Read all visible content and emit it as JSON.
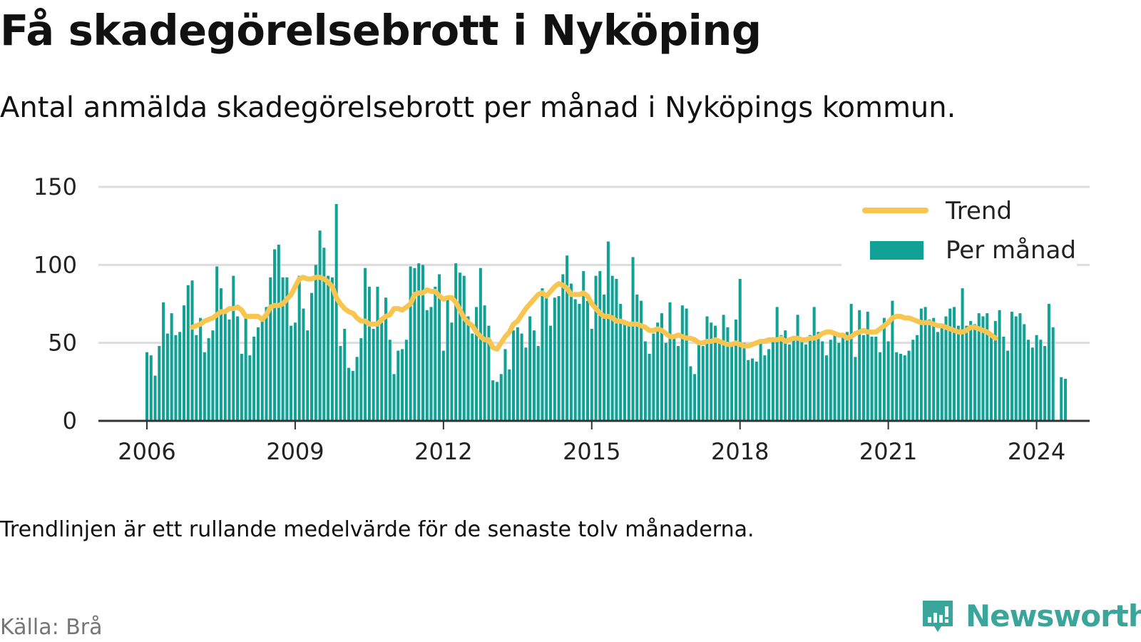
{
  "title": "Få skadegörelsebrott i Nyköping",
  "subtitle": "Antal anmälda skadegörelsebrott per månad i Nyköpings kommun.",
  "note": "Trendlinjen är ett rullande medelvärde för de senaste tolv månaderna.",
  "source": "Källa: Brå",
  "brand": "Newsworthy",
  "colors": {
    "bars": "#12a195",
    "trend": "#f7c550",
    "grid": "#dddddd",
    "axis": "#333333",
    "brand": "#3aa59a"
  },
  "chart_data": {
    "type": "bar",
    "x_start": "2006-01",
    "x_ticks": [
      "2006",
      "2009",
      "2012",
      "2015",
      "2018",
      "2021",
      "2024"
    ],
    "y_ticks": [
      0,
      50,
      100,
      150
    ],
    "ylim": [
      0,
      150
    ],
    "grid": true,
    "legend_position": "top-right",
    "series": [
      {
        "name": "Per månad",
        "kind": "bar",
        "values": [
          44,
          42,
          29,
          48,
          76,
          56,
          69,
          55,
          57,
          74,
          87,
          90,
          55,
          66,
          44,
          53,
          58,
          99,
          85,
          70,
          65,
          93,
          67,
          43,
          66,
          42,
          54,
          60,
          64,
          73,
          92,
          110,
          113,
          92,
          92,
          61,
          63,
          93,
          72,
          58,
          82,
          100,
          122,
          111,
          93,
          92,
          139,
          48,
          59,
          34,
          32,
          41,
          53,
          98,
          86,
          59,
          86,
          63,
          79,
          52,
          30,
          45,
          46,
          52,
          99,
          98,
          101,
          100,
          71,
          73,
          86,
          94,
          45,
          78,
          63,
          101,
          95,
          93,
          67,
          56,
          73,
          98,
          74,
          61,
          26,
          25,
          30,
          46,
          33,
          58,
          60,
          56,
          47,
          67,
          58,
          48,
          85,
          80,
          61,
          79,
          80,
          94,
          106,
          88,
          78,
          75,
          96,
          77,
          59,
          93,
          96,
          81,
          115,
          93,
          91,
          75,
          62,
          62,
          105,
          81,
          77,
          51,
          43,
          56,
          63,
          69,
          50,
          76,
          55,
          48,
          74,
          72,
          35,
          30,
          51,
          48,
          67,
          63,
          61,
          51,
          68,
          60,
          48,
          65,
          91,
          50,
          39,
          40,
          38,
          50,
          42,
          46,
          52,
          73,
          55,
          58,
          49,
          53,
          68,
          51,
          49,
          55,
          73,
          57,
          51,
          42,
          52,
          55,
          50,
          56,
          57,
          75,
          41,
          71,
          55,
          70,
          54,
          54,
          44,
          66,
          51,
          77,
          44,
          43,
          42,
          45,
          52,
          55,
          72,
          73,
          65,
          66,
          57,
          60,
          67,
          72,
          73,
          61,
          85,
          61,
          64,
          62,
          69,
          67,
          69,
          54,
          64,
          71,
          54,
          45,
          70,
          67,
          69,
          62,
          52,
          47,
          55,
          52,
          48,
          75,
          60,
          0,
          28,
          27
        ]
      },
      {
        "name": "Trend",
        "kind": "line",
        "start_index": 11,
        "values": [
          60,
          61,
          62,
          64,
          65,
          66,
          68,
          70,
          70,
          72,
          72,
          73,
          71,
          67,
          67,
          67,
          67,
          65,
          68,
          73,
          74,
          74,
          75,
          78,
          81,
          86,
          91,
          92,
          91,
          91,
          92,
          92,
          91,
          89,
          86,
          79,
          75,
          72,
          70,
          69,
          66,
          64,
          64,
          62,
          62,
          62,
          65,
          67,
          68,
          72,
          72,
          71,
          73,
          75,
          81,
          82,
          82,
          84,
          83,
          83,
          80,
          78,
          79,
          79,
          76,
          71,
          66,
          63,
          61,
          57,
          54,
          52,
          52,
          47,
          46,
          50,
          54,
          57,
          62,
          64,
          68,
          72,
          75,
          78,
          81,
          82,
          80,
          83,
          86,
          88,
          87,
          85,
          81,
          81,
          81,
          82,
          80,
          75,
          72,
          69,
          67,
          67,
          66,
          64,
          64,
          63,
          62,
          62,
          62,
          61,
          60,
          58,
          58,
          59,
          58,
          56,
          54,
          54,
          55,
          54,
          53,
          53,
          52,
          50,
          50,
          51,
          51,
          52,
          51,
          50,
          49,
          49,
          50,
          49,
          48,
          48,
          49,
          50,
          51,
          51,
          52,
          52,
          52,
          53,
          51,
          52,
          53,
          53,
          52,
          52,
          53,
          53,
          54,
          56,
          57,
          57,
          56,
          55,
          55,
          53,
          54,
          56,
          57,
          58,
          57,
          57,
          57,
          59,
          61,
          63,
          66,
          67,
          67,
          66,
          66,
          65,
          64,
          63,
          63,
          63,
          62,
          61,
          61,
          60,
          59,
          58,
          57,
          57,
          58,
          60,
          60,
          59,
          58,
          57,
          55,
          53
        ]
      }
    ]
  }
}
